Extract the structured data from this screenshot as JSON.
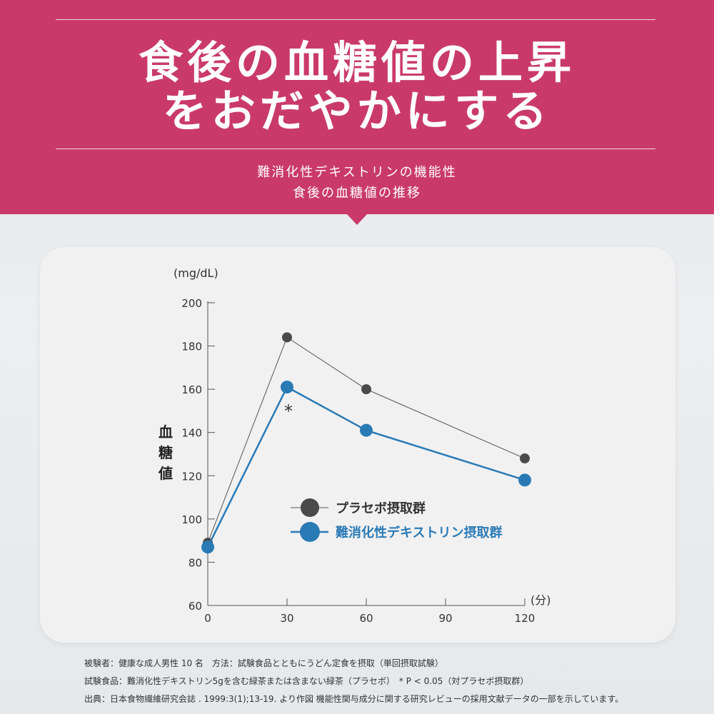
{
  "header": {
    "title_line1": "食後の血糖値の上昇",
    "title_line2": "をおだやかにする",
    "subtitle_line1": "難消化性デキストリンの機能性",
    "subtitle_line2": "食後の血糖値の推移"
  },
  "colors": {
    "banner": "#c93a6a",
    "placebo": "#4a4a4a",
    "dextrin": "#2a7ab5"
  },
  "chart_data": {
    "type": "line",
    "y_unit": "(mg/dL)",
    "x_unit": "(分)",
    "ylabel": "血糖値",
    "x": [
      0,
      30,
      60,
      120
    ],
    "xticks": [
      0,
      30,
      60,
      90,
      120
    ],
    "yticks": [
      60,
      80,
      100,
      120,
      140,
      160,
      180,
      200
    ],
    "xlim": [
      0,
      120
    ],
    "ylim": [
      60,
      200
    ],
    "grid": false,
    "legend_position": "center-right",
    "series": [
      {
        "name": "プラセボ摂取群",
        "values": [
          89,
          184,
          160,
          128
        ]
      },
      {
        "name": "難消化性デキストリン摂取群",
        "values": [
          87,
          161,
          141,
          118
        ]
      }
    ],
    "annotations": [
      {
        "text": "*",
        "x": 30,
        "y": 161
      }
    ]
  },
  "footnotes": {
    "line1": "被験者：健康な成人男性 10 名　方法：試験食品とともにうどん定食を摂取（単回摂取試験）",
    "line2": "試験食品：難消化性デキストリン5gを含む緑茶または含まない緑茶（プラセボ）　* P < 0.05（対プラセボ摂取群）",
    "line3": "出典：日本食物繊維研究会誌 . 1999:3(1);13-19. より作図 機能性関与成分に関する研究レビューの採用文献データの一部を示しています。"
  }
}
